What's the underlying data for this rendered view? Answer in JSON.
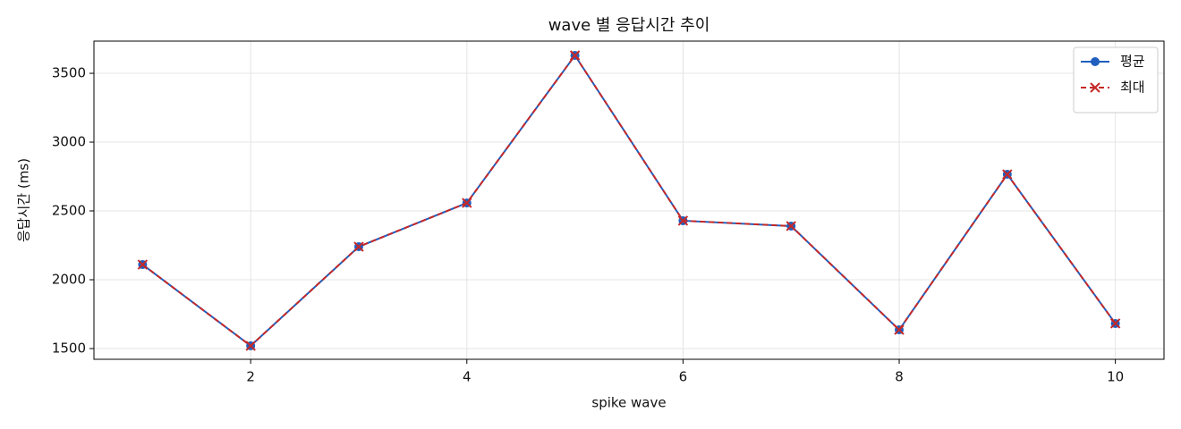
{
  "chart_data": {
    "type": "line",
    "title": "wave 별 응답시간 추이",
    "x_label": "spike wave",
    "y_label": "응답시간 (ms)",
    "x": [
      1,
      2,
      3,
      4,
      5,
      6,
      7,
      8,
      9,
      10
    ],
    "series": [
      {
        "name": "평균",
        "color": "#1f5fbf",
        "marker": "circle",
        "dash": "solid",
        "values": [
          2110,
          1520,
          2240,
          2558,
          3630,
          2429,
          2390,
          1636,
          2766,
          1682
        ]
      },
      {
        "name": "최대",
        "color": "#c62828",
        "marker": "x",
        "dash": "dashed",
        "values": [
          2110,
          1520,
          2240,
          2558,
          3630,
          2429,
          2390,
          1636,
          2766,
          1682
        ]
      }
    ],
    "xlim": [
      0.55,
      10.45
    ],
    "xticks": [
      2,
      4,
      6,
      8,
      10
    ],
    "ylim": [
      1422,
      3734
    ],
    "yticks": [
      1500,
      2000,
      2500,
      3000,
      3500
    ],
    "grid": true,
    "legend": "upper right"
  }
}
